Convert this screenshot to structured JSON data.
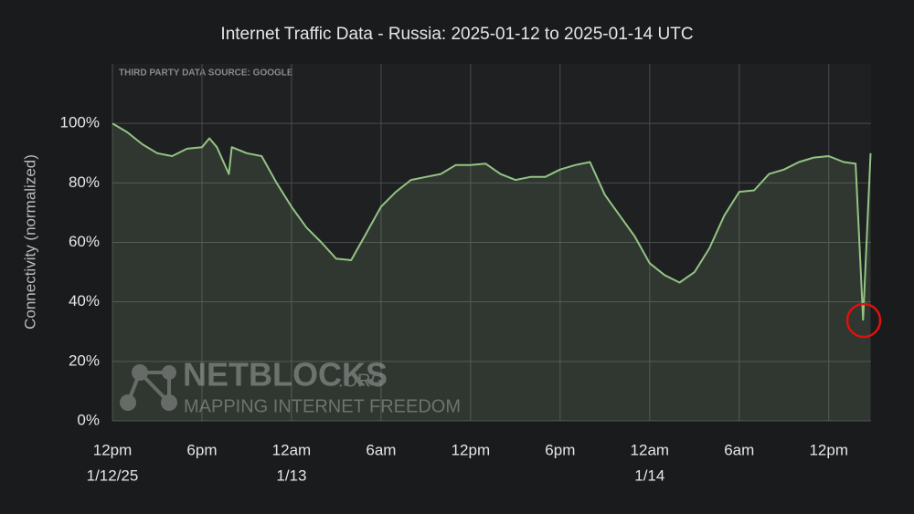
{
  "chart_data": {
    "type": "line",
    "title": "Internet Traffic Data - Russia: 2025-01-12 to 2025-01-14 UTC",
    "y_label": "Connectivity (normalized)",
    "source_note": "THIRD PARTY DATA SOURCE: GOOGLE",
    "watermark": {
      "name": "NETBLOCKS",
      "suffix": ".ORG",
      "tagline": "MAPPING INTERNET FREEDOM"
    },
    "x": [
      "2025-01-12T12:00",
      "2025-01-12T13:00",
      "2025-01-12T14:00",
      "2025-01-12T15:00",
      "2025-01-12T16:00",
      "2025-01-12T17:00",
      "2025-01-12T18:00",
      "2025-01-12T18:30",
      "2025-01-12T19:00",
      "2025-01-12T19:48",
      "2025-01-12T20:00",
      "2025-01-12T21:00",
      "2025-01-12T22:00",
      "2025-01-12T23:00",
      "2025-01-13T00:00",
      "2025-01-13T01:00",
      "2025-01-13T02:00",
      "2025-01-13T03:00",
      "2025-01-13T04:00",
      "2025-01-13T05:00",
      "2025-01-13T06:00",
      "2025-01-13T07:00",
      "2025-01-13T08:00",
      "2025-01-13T09:00",
      "2025-01-13T10:00",
      "2025-01-13T11:00",
      "2025-01-13T12:00",
      "2025-01-13T13:00",
      "2025-01-13T14:00",
      "2025-01-13T15:00",
      "2025-01-13T16:00",
      "2025-01-13T17:00",
      "2025-01-13T18:00",
      "2025-01-13T19:00",
      "2025-01-13T20:00",
      "2025-01-13T21:00",
      "2025-01-13T22:00",
      "2025-01-13T23:00",
      "2025-01-14T00:00",
      "2025-01-14T01:00",
      "2025-01-14T02:00",
      "2025-01-14T03:00",
      "2025-01-14T04:00",
      "2025-01-14T05:00",
      "2025-01-14T06:00",
      "2025-01-14T07:00",
      "2025-01-14T08:00",
      "2025-01-14T09:00",
      "2025-01-14T10:00",
      "2025-01-14T11:00",
      "2025-01-14T12:00",
      "2025-01-14T13:00",
      "2025-01-14T13:48",
      "2025-01-14T14:18",
      "2025-01-14T14:48"
    ],
    "values": [
      100,
      97,
      93,
      90,
      89,
      91.5,
      92,
      95,
      92,
      83,
      92,
      90,
      89,
      80,
      72,
      65,
      60,
      54.5,
      54,
      63,
      72,
      77,
      81,
      82,
      83,
      86,
      86,
      86.5,
      83,
      81,
      82,
      82,
      84.5,
      86,
      87,
      76,
      69,
      62,
      53,
      49,
      46.5,
      50,
      58,
      69,
      77,
      77.5,
      83,
      84.5,
      87,
      88.5,
      89,
      87,
      86.5,
      34,
      90
    ],
    "color": "#93c484",
    "xlim": [
      "2025-01-12T12:00",
      "2025-01-14T14:50"
    ],
    "xticks": [
      {
        "value": "2025-01-12T12:00",
        "label": "12pm"
      },
      {
        "value": "2025-01-12T18:00",
        "label": "6pm"
      },
      {
        "value": "2025-01-13T00:00",
        "label": "12am"
      },
      {
        "value": "2025-01-13T06:00",
        "label": "6am"
      },
      {
        "value": "2025-01-13T12:00",
        "label": "12pm"
      },
      {
        "value": "2025-01-13T18:00",
        "label": "6pm"
      },
      {
        "value": "2025-01-14T00:00",
        "label": "12am"
      },
      {
        "value": "2025-01-14T06:00",
        "label": "6am"
      },
      {
        "value": "2025-01-14T12:00",
        "label": "12pm"
      }
    ],
    "x_date_ticks": [
      {
        "value": "2025-01-12T12:00",
        "label": "1/12/25"
      },
      {
        "value": "2025-01-13T00:00",
        "label": "1/13"
      },
      {
        "value": "2025-01-14T00:00",
        "label": "1/14"
      }
    ],
    "ylim": [
      0,
      120
    ],
    "yticks": [
      {
        "value": 0,
        "label": "0%"
      },
      {
        "value": 20,
        "label": "20%"
      },
      {
        "value": 40,
        "label": "40%"
      },
      {
        "value": 60,
        "label": "60%"
      },
      {
        "value": 80,
        "label": "80%"
      },
      {
        "value": 100,
        "label": "100%"
      }
    ],
    "grid": true
  }
}
